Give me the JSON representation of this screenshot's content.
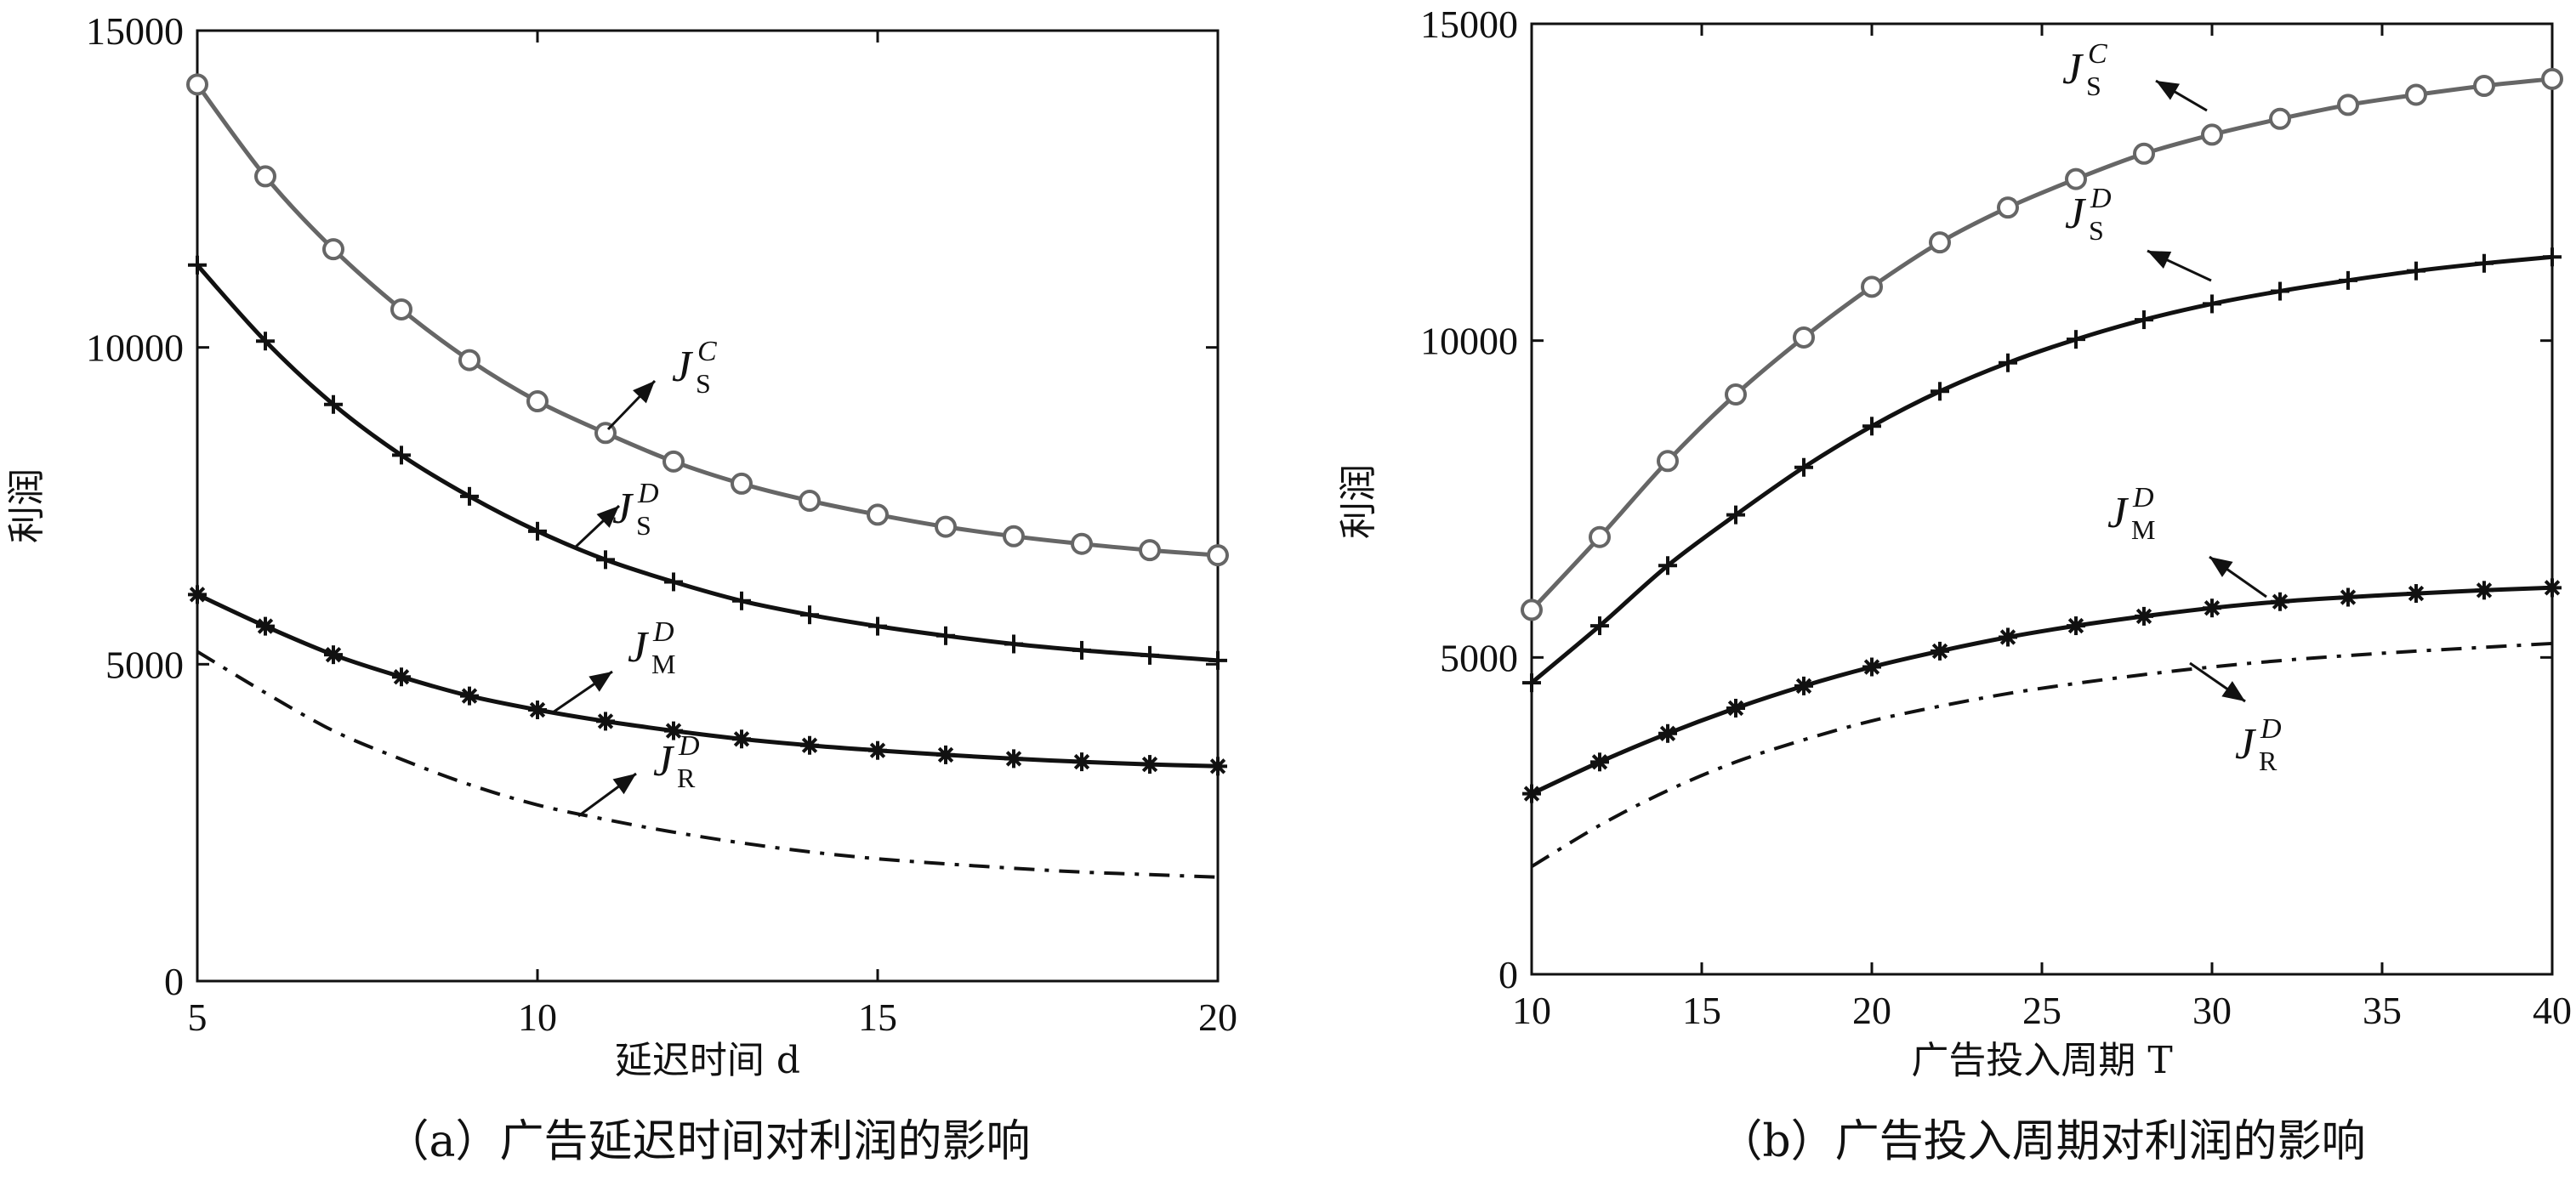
{
  "chart_data": [
    {
      "type": "line",
      "caption": "（a）广告延迟时间对利润的影响",
      "xlabel": "延迟时间 d",
      "ylabel": "利润",
      "xlim": [
        5,
        20
      ],
      "ylim": [
        0,
        15000
      ],
      "xticks": [
        5,
        10,
        15,
        20
      ],
      "yticks": [
        0,
        5000,
        10000,
        15000
      ],
      "grid": false,
      "x": [
        5,
        6,
        7,
        8,
        9,
        10,
        11,
        12,
        13,
        14,
        15,
        16,
        17,
        18,
        19,
        20
      ],
      "series": [
        {
          "key": "JSC",
          "label_main": "J",
          "label_sub": "S",
          "label_sup": "C",
          "color": "#666666",
          "marker": "circle",
          "style": "solid",
          "values": [
            14150,
            12700,
            11550,
            10600,
            9800,
            9150,
            8650,
            8200,
            7850,
            7580,
            7360,
            7170,
            7020,
            6900,
            6800,
            6720
          ]
        },
        {
          "key": "JSD",
          "label_main": "J",
          "label_sub": "S",
          "label_sup": "D",
          "color": "#111111",
          "marker": "plus",
          "style": "solid",
          "values": [
            11300,
            10100,
            9100,
            8300,
            7650,
            7100,
            6650,
            6300,
            6000,
            5780,
            5600,
            5450,
            5320,
            5220,
            5140,
            5060
          ]
        },
        {
          "key": "JMD",
          "label_main": "J",
          "label_sub": "M",
          "label_sup": "D",
          "color": "#111111",
          "marker": "asterisk",
          "style": "solid",
          "values": [
            6100,
            5600,
            5150,
            4800,
            4500,
            4280,
            4100,
            3950,
            3820,
            3720,
            3640,
            3570,
            3510,
            3460,
            3420,
            3390
          ]
        },
        {
          "key": "JRD",
          "label_main": "J",
          "label_sub": "R",
          "label_sup": "D",
          "color": "#111111",
          "marker": "none",
          "style": "dashdot",
          "values": [
            5200,
            4550,
            3950,
            3500,
            3100,
            2780,
            2550,
            2350,
            2180,
            2040,
            1930,
            1850,
            1780,
            1720,
            1680,
            1640
          ]
        }
      ]
    },
    {
      "type": "line",
      "caption": "（b）广告投入周期对利润的影响",
      "xlabel": "广告投入周期 T",
      "ylabel": "利润",
      "xlim": [
        10,
        40
      ],
      "ylim": [
        0,
        15000
      ],
      "xticks": [
        10,
        15,
        20,
        25,
        30,
        35,
        40
      ],
      "yticks": [
        0,
        5000,
        10000,
        15000
      ],
      "grid": false,
      "x": [
        10,
        12,
        14,
        16,
        18,
        20,
        22,
        24,
        26,
        28,
        30,
        32,
        34,
        36,
        38,
        40
      ],
      "series": [
        {
          "key": "JSC",
          "label_main": "J",
          "label_sub": "S",
          "label_sup": "C",
          "color": "#666666",
          "marker": "circle",
          "style": "solid",
          "values": [
            5750,
            6900,
            8100,
            9150,
            10050,
            10850,
            11550,
            12100,
            12550,
            12950,
            13250,
            13500,
            13720,
            13880,
            14020,
            14130
          ]
        },
        {
          "key": "JSD",
          "label_main": "J",
          "label_sub": "S",
          "label_sup": "D",
          "color": "#111111",
          "marker": "plus",
          "style": "solid",
          "values": [
            4600,
            5500,
            6450,
            7250,
            8000,
            8650,
            9200,
            9650,
            10020,
            10330,
            10580,
            10780,
            10950,
            11100,
            11220,
            11320
          ]
        },
        {
          "key": "JMD",
          "label_main": "J",
          "label_sub": "M",
          "label_sup": "D",
          "color": "#111111",
          "marker": "asterisk",
          "style": "solid",
          "values": [
            2850,
            3350,
            3800,
            4200,
            4550,
            4850,
            5100,
            5320,
            5500,
            5650,
            5780,
            5880,
            5950,
            6010,
            6060,
            6100
          ]
        },
        {
          "key": "JRD",
          "label_main": "J",
          "label_sub": "R",
          "label_sup": "D",
          "color": "#111111",
          "marker": "none",
          "style": "dashdot",
          "values": [
            1700,
            2350,
            2900,
            3350,
            3700,
            4000,
            4230,
            4430,
            4590,
            4730,
            4850,
            4950,
            5030,
            5100,
            5160,
            5220
          ]
        }
      ]
    }
  ]
}
